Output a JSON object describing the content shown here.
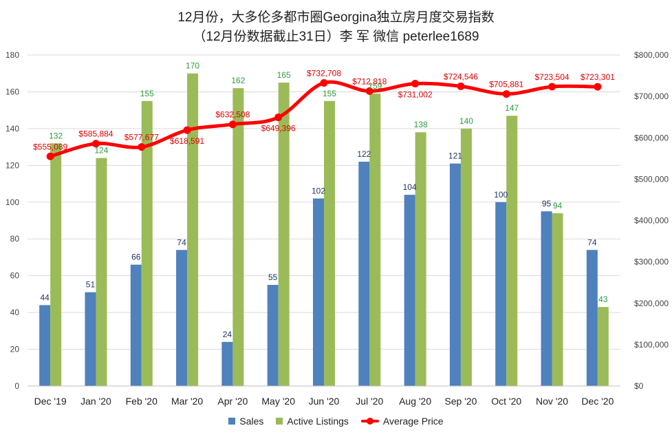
{
  "chart_data": {
    "type": "bar",
    "title": "12月份，大多伦多都市圈Georgina独立房月度交易指数",
    "subtitle": "（12月份数据截止31日）李 军  微信  peterlee1689",
    "categories": [
      "Dec '19",
      "Jan '20",
      "Feb '20",
      "Mar '20",
      "Apr '20",
      "May '20",
      "Jun '20",
      "Jul '20",
      "Aug '20",
      "Sep '20",
      "Oct '20",
      "Nov '20",
      "Dec '20"
    ],
    "series": [
      {
        "name": "Sales",
        "type": "bar",
        "axis": "left",
        "color": "#4f81bd",
        "values": [
          44,
          51,
          66,
          74,
          24,
          55,
          102,
          122,
          104,
          121,
          100,
          95,
          74
        ]
      },
      {
        "name": "Active Listings",
        "type": "bar",
        "axis": "left",
        "color": "#9bbb59",
        "values": [
          132,
          124,
          155,
          170,
          162,
          165,
          155,
          159,
          138,
          140,
          147,
          94,
          43
        ]
      },
      {
        "name": "Average Price",
        "type": "line",
        "axis": "right",
        "color": "#ff0000",
        "values": [
          555089,
          585884,
          577677,
          618591,
          632508,
          649396,
          732708,
          712818,
          731002,
          724546,
          705881,
          723504,
          723301
        ]
      }
    ],
    "value_labels": {
      "Sales": [
        "44",
        "51",
        "66",
        "74",
        "24",
        "55",
        "102",
        "122",
        "104",
        "121",
        "100",
        "95",
        "74"
      ],
      "Active Listings": [
        "132",
        "124",
        "155",
        "170",
        "162",
        "165",
        "155",
        "159",
        "138",
        "140",
        "147",
        "94",
        "43"
      ],
      "Average Price": [
        "$555,089",
        "$585,884",
        "$577,677",
        "$618,591",
        "$632,508",
        "$649,396",
        "$732,708",
        "$712,818",
        "$731,002",
        "$724,546",
        "$705,881",
        "$723,504",
        "$723,301"
      ]
    },
    "y_left": {
      "min": 0,
      "max": 180,
      "step": 20
    },
    "y_right": {
      "min": 0,
      "max": 800000,
      "step": 100000,
      "tick_labels": [
        "$0",
        "$100,000",
        "$200,000",
        "$300,000",
        "$400,000",
        "$500,000",
        "$600,000",
        "$700,000",
        "$800,000"
      ]
    },
    "grid": true,
    "legend_position": "bottom"
  }
}
